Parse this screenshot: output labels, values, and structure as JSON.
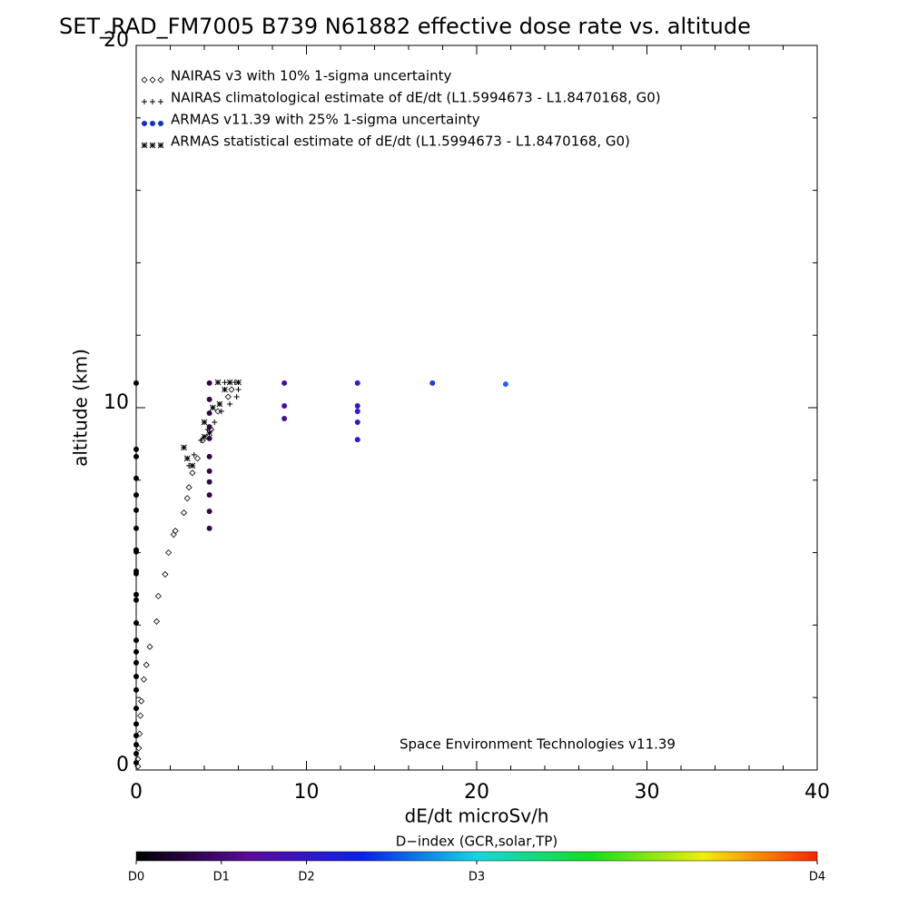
{
  "chart_data": {
    "type": "scatter",
    "title": "SET_RAD_FM7005  B739 N61882 effective dose rate vs. altitude",
    "x_label": "dE/dt microSv/h",
    "y_label": "altitude (km)",
    "annotation": "Space Environment Technologies v11.39",
    "xlim": [
      0,
      40
    ],
    "ylim": [
      0,
      20
    ],
    "xticks": [
      0,
      10,
      20,
      30,
      40
    ],
    "yticks": [
      0,
      10,
      20
    ],
    "xminorticks": [
      2,
      4,
      6,
      8,
      12,
      14,
      16,
      18,
      22,
      24,
      26,
      28,
      32,
      34,
      36,
      38
    ],
    "yminorticks": [
      2,
      4,
      6,
      8,
      12,
      14,
      16,
      18
    ],
    "legend": "upper left",
    "series": [
      {
        "name": "NAIRAS v3 with 10% 1-sigma uncertainty",
        "marker": "diamond",
        "color": "#000000",
        "x": [
          0.1,
          0.1,
          0.15,
          0.2,
          0.25,
          0.3,
          0.45,
          0.6,
          0.8,
          1.2,
          1.3,
          1.7,
          1.9,
          2.2,
          2.3,
          2.8,
          3.0,
          3.1,
          3.3,
          3.6,
          3.9,
          4.4,
          4.8,
          5.4,
          5.6
        ],
        "y": [
          0.1,
          0.3,
          0.6,
          1.0,
          1.5,
          1.9,
          2.5,
          2.9,
          3.4,
          4.1,
          4.8,
          5.4,
          6.0,
          6.5,
          6.6,
          7.1,
          7.5,
          7.8,
          8.2,
          8.6,
          9.1,
          9.4,
          9.9,
          10.3,
          10.5
        ]
      },
      {
        "name": "NAIRAS climatological estimate of dE/dt (L1.5994673 - L1.8470168, G0)",
        "marker": "plus",
        "color": "#000000",
        "x": [
          3.1,
          3.4,
          3.8,
          4.2,
          4.6,
          5.0,
          5.5,
          5.9,
          6.0,
          5.8,
          5.2
        ],
        "y": [
          8.4,
          8.7,
          9.1,
          9.4,
          9.6,
          9.9,
          10.1,
          10.3,
          10.5,
          10.7,
          10.7
        ]
      },
      {
        "name": "ARMAS v11.39 with 25% 1-sigma uncertainty",
        "marker": "dot",
        "color": "#1030d0",
        "x": [
          0,
          0,
          0,
          0,
          0,
          0,
          0,
          0,
          0,
          0,
          0,
          0,
          0,
          0,
          0,
          0,
          0,
          0,
          0,
          0,
          0,
          0,
          0,
          0,
          0,
          4.3,
          4.3,
          4.3,
          4.3,
          4.3,
          4.3,
          4.3,
          4.3,
          4.3,
          4.3,
          4.3,
          8.7,
          8.7,
          8.7,
          13.0,
          13.0,
          13.0,
          13.0,
          13.0,
          17.4,
          21.7
        ],
        "y": [
          10.68,
          8.85,
          8.65,
          8.05,
          7.59,
          7.17,
          6.67,
          6.07,
          6.02,
          5.49,
          5.42,
          4.84,
          4.69,
          4.06,
          3.58,
          3.26,
          2.96,
          2.58,
          2.21,
          1.7,
          1.27,
          0.95,
          0.7,
          0.45,
          0.2,
          10.68,
          10.23,
          9.85,
          9.47,
          9.15,
          8.65,
          8.25,
          7.95,
          7.59,
          7.14,
          6.67,
          10.68,
          10.05,
          9.7,
          10.68,
          10.05,
          9.9,
          9.6,
          9.12,
          10.68,
          10.65
        ],
        "colors": [
          "#000000",
          "#000000",
          "#000000",
          "#000000",
          "#000000",
          "#000000",
          "#000000",
          "#000000",
          "#000000",
          "#000000",
          "#000000",
          "#000000",
          "#000000",
          "#000000",
          "#000000",
          "#000000",
          "#000000",
          "#000000",
          "#000000",
          "#000000",
          "#000000",
          "#000000",
          "#000000",
          "#000000",
          "#000000",
          "#30084a",
          "#30084a",
          "#30084a",
          "#30084a",
          "#30084a",
          "#30084a",
          "#30084a",
          "#30084a",
          "#30084a",
          "#30084a",
          "#30084a",
          "#4c0ca0",
          "#4c0ca0",
          "#4c0ca0",
          "#3c14c8",
          "#3c14c8",
          "#3c14c8",
          "#3c14c8",
          "#3c14c8",
          "#1a3ce8",
          "#1e64e6"
        ]
      },
      {
        "name": "ARMAS statistical estimate of dE/dt (L1.5994673 - L1.8470168, G0)",
        "marker": "star",
        "color": "#000000",
        "x": [
          2.8,
          3.0,
          3.3,
          4.0,
          4.0,
          4.3,
          4.5,
          4.9,
          5.2,
          5.5,
          6.0,
          4.8
        ],
        "y": [
          8.9,
          8.6,
          8.4,
          9.2,
          9.6,
          9.3,
          10.0,
          10.1,
          10.5,
          10.7,
          10.7,
          10.7
        ]
      }
    ],
    "colorbar": {
      "title": "D−index (GCR,solar,TP)",
      "lim": [
        0,
        4
      ],
      "colors": [
        "#000000",
        "#5a0a9a",
        "#0a20f0",
        "#10d8e0",
        "#10e020",
        "#f0f000",
        "#ff2000"
      ],
      "ticks": [
        {
          "value": 0,
          "label": "D0"
        },
        {
          "value": 0.5,
          "label": "D1"
        },
        {
          "value": 1,
          "label": "D2"
        },
        {
          "value": 2,
          "label": "D3"
        },
        {
          "value": 4,
          "label": "D4"
        }
      ]
    }
  }
}
